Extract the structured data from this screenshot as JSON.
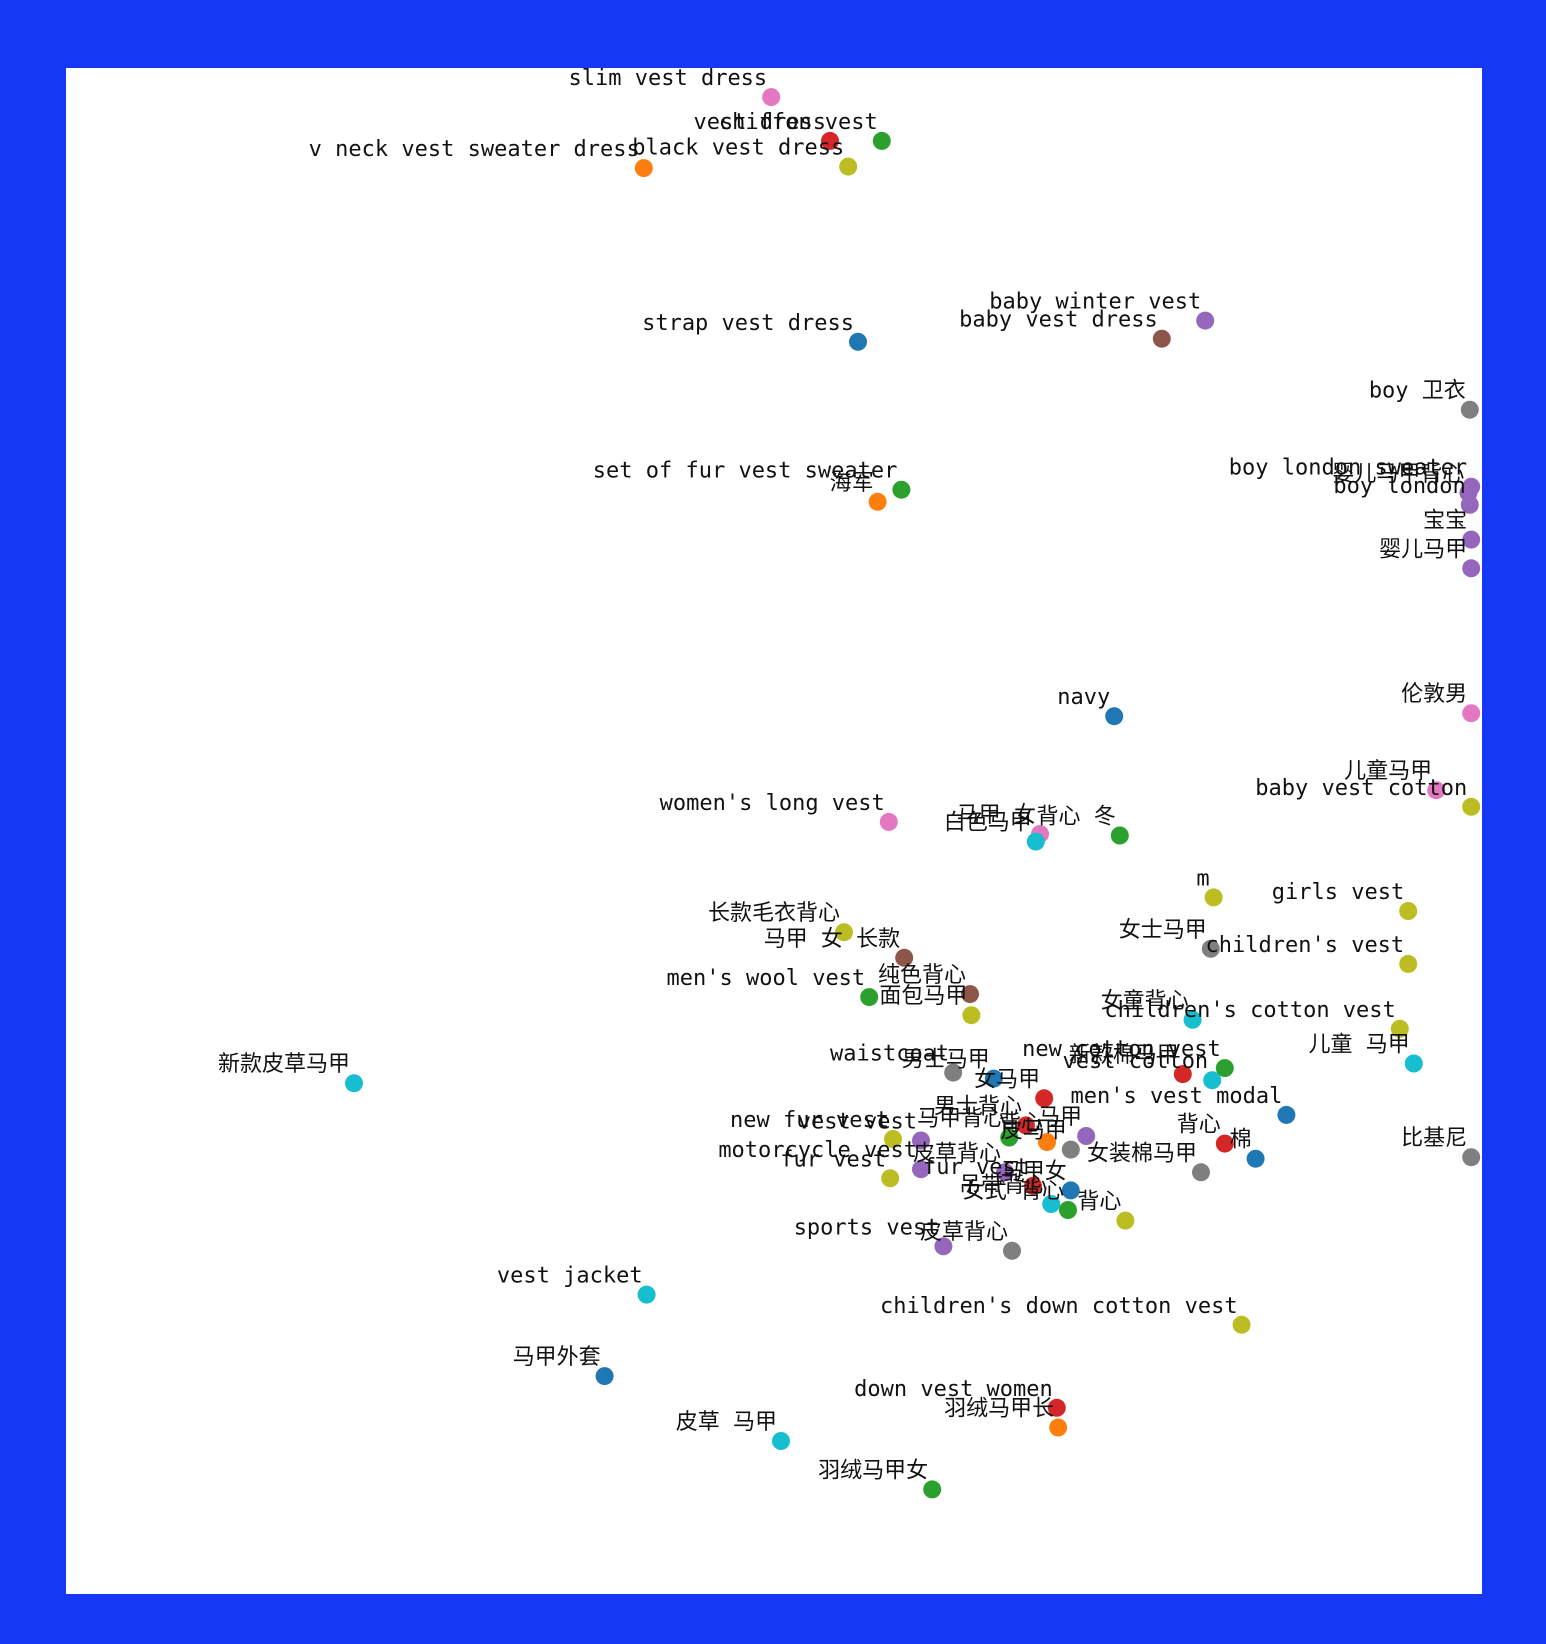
{
  "chart_data": {
    "type": "scatter",
    "title": "",
    "xlabel": "",
    "ylabel": "",
    "axes_visible": false,
    "grid": false,
    "frame_color": "#1438f5",
    "xlim": [
      0,
      100
    ],
    "ylim": [
      0,
      100
    ],
    "points": [
      {
        "label": "slim vest dress",
        "x": 49.8,
        "y": 98.6,
        "color": "#e377c2"
      },
      {
        "label": "vest dress",
        "x": 54.0,
        "y": 95.7,
        "color": "#d62728"
      },
      {
        "label": "chiffon vest",
        "x": 57.7,
        "y": 95.7,
        "color": "#2ca02c"
      },
      {
        "label": "v neck vest sweater dress",
        "x": 40.7,
        "y": 93.9,
        "color": "#ff7f0e"
      },
      {
        "label": "black vest dress",
        "x": 55.3,
        "y": 94.0,
        "color": "#bcbd22"
      },
      {
        "label": "strap vest dress",
        "x": 56.0,
        "y": 82.4,
        "color": "#1f77b4"
      },
      {
        "label": "baby winter vest",
        "x": 80.8,
        "y": 83.8,
        "color": "#9467bd"
      },
      {
        "label": "baby vest dress",
        "x": 77.7,
        "y": 82.6,
        "color": "#8c564b"
      },
      {
        "label": "boy 卫衣",
        "x": 99.7,
        "y": 77.9,
        "color": "#7f7f7f"
      },
      {
        "label": "set of fur vest sweater",
        "x": 59.1,
        "y": 72.6,
        "color": "#2ca02c"
      },
      {
        "label": "海军",
        "x": 57.4,
        "y": 71.8,
        "color": "#ff7f0e"
      },
      {
        "label": "boy london sweater",
        "x": 99.8,
        "y": 72.8,
        "color": "#9467bd"
      },
      {
        "label": "婴儿马甲背心",
        "x": 99.6,
        "y": 72.4,
        "color": "#9467bd"
      },
      {
        "label": "boy london",
        "x": 99.7,
        "y": 71.6,
        "color": "#9467bd"
      },
      {
        "label": "宝宝",
        "x": 99.8,
        "y": 69.3,
        "color": "#9467bd"
      },
      {
        "label": "婴儿马甲",
        "x": 99.8,
        "y": 67.4,
        "color": "#9467bd"
      },
      {
        "label": "navy",
        "x": 74.3,
        "y": 57.6,
        "color": "#1f77b4"
      },
      {
        "label": "伦敦男",
        "x": 99.8,
        "y": 57.8,
        "color": "#e377c2"
      },
      {
        "label": "儿童马甲",
        "x": 97.3,
        "y": 52.7,
        "color": "#e377c2"
      },
      {
        "label": "baby vest cotton",
        "x": 99.8,
        "y": 51.6,
        "color": "#bcbd22"
      },
      {
        "label": "women's long vest",
        "x": 58.2,
        "y": 50.6,
        "color": "#e377c2"
      },
      {
        "label": "马甲 女",
        "x": 69.0,
        "y": 49.8,
        "color": "#e377c2"
      },
      {
        "label": "背心 冬",
        "x": 74.7,
        "y": 49.7,
        "color": "#2ca02c"
      },
      {
        "label": "白色马甲",
        "x": 68.7,
        "y": 49.3,
        "color": "#17becf"
      },
      {
        "label": "m",
        "x": 81.4,
        "y": 45.6,
        "color": "#bcbd22"
      },
      {
        "label": "girls vest",
        "x": 95.3,
        "y": 44.7,
        "color": "#bcbd22"
      },
      {
        "label": "长款毛衣背心",
        "x": 55.0,
        "y": 43.3,
        "color": "#bcbd22"
      },
      {
        "label": "女士马甲",
        "x": 81.2,
        "y": 42.2,
        "color": "#7f7f7f"
      },
      {
        "label": "children's vest",
        "x": 95.3,
        "y": 41.2,
        "color": "#bcbd22"
      },
      {
        "label": "马甲 女 长款",
        "x": 59.3,
        "y": 41.6,
        "color": "#8c564b"
      },
      {
        "label": "纯色背心",
        "x": 64.0,
        "y": 39.2,
        "color": "#8c564b"
      },
      {
        "label": "men's wool vest",
        "x": 56.8,
        "y": 39.0,
        "color": "#2ca02c"
      },
      {
        "label": "面包马甲",
        "x": 64.1,
        "y": 37.8,
        "color": "#bcbd22"
      },
      {
        "label": "女童背心",
        "x": 79.9,
        "y": 37.5,
        "color": "#17becf"
      },
      {
        "label": "children's cotton vest",
        "x": 94.7,
        "y": 36.9,
        "color": "#bcbd22"
      },
      {
        "label": "新款皮草马甲",
        "x": 20.0,
        "y": 33.3,
        "color": "#17becf"
      },
      {
        "label": "waistcoat",
        "x": 62.8,
        "y": 34.0,
        "color": "#7f7f7f"
      },
      {
        "label": "男士马甲",
        "x": 65.7,
        "y": 33.6,
        "color": "#1f77b4"
      },
      {
        "label": "new cotton vest",
        "x": 82.2,
        "y": 34.3,
        "color": "#2ca02c"
      },
      {
        "label": "新款棉马甲",
        "x": 79.2,
        "y": 33.9,
        "color": "#d62728"
      },
      {
        "label": "vest cotton",
        "x": 81.3,
        "y": 33.5,
        "color": "#17becf"
      },
      {
        "label": "儿童 马甲",
        "x": 95.7,
        "y": 34.6,
        "color": "#17becf"
      },
      {
        "label": "女马甲",
        "x": 69.3,
        "y": 32.3,
        "color": "#d62728"
      },
      {
        "label": "men's vest modal",
        "x": 86.6,
        "y": 31.2,
        "color": "#1f77b4"
      },
      {
        "label": "男士背心",
        "x": 68.0,
        "y": 30.5,
        "color": "#d62728"
      },
      {
        "label": "new fur vest",
        "x": 58.5,
        "y": 29.6,
        "color": "#bcbd22"
      },
      {
        "label": "vest vest",
        "x": 60.5,
        "y": 29.5,
        "color": "#9467bd"
      },
      {
        "label": "马甲背心",
        "x": 66.8,
        "y": 29.7,
        "color": "#2ca02c"
      },
      {
        "label": "背心",
        "x": 69.5,
        "y": 29.4,
        "color": "#ff7f0e"
      },
      {
        "label": "马甲",
        "x": 72.3,
        "y": 29.8,
        "color": "#9467bd"
      },
      {
        "label": "皮马甲",
        "x": 71.2,
        "y": 28.9,
        "color": "#7f7f7f"
      },
      {
        "label": "背心",
        "x": 82.2,
        "y": 29.3,
        "color": "#d62728"
      },
      {
        "label": "棉",
        "x": 84.4,
        "y": 28.3,
        "color": "#1f77b4"
      },
      {
        "label": "比基尼",
        "x": 99.8,
        "y": 28.4,
        "color": "#7f7f7f"
      },
      {
        "label": "女装棉马甲",
        "x": 80.5,
        "y": 27.4,
        "color": "#7f7f7f"
      },
      {
        "label": "fur vest",
        "x": 58.3,
        "y": 27.0,
        "color": "#bcbd22"
      },
      {
        "label": "motorcycle vest",
        "x": 60.5,
        "y": 27.6,
        "color": "#9467bd"
      },
      {
        "label": "皮草背心",
        "x": 66.5,
        "y": 27.4,
        "color": "#9467bd"
      },
      {
        "label": "fur vest",
        "x": 68.5,
        "y": 26.5,
        "color": "#d62728"
      },
      {
        "label": "马甲女",
        "x": 71.2,
        "y": 26.2,
        "color": "#1f77b4"
      },
      {
        "label": "吊带背心",
        "x": 69.8,
        "y": 25.3,
        "color": "#17becf"
      },
      {
        "label": "女式 背心",
        "x": 71.0,
        "y": 24.9,
        "color": "#2ca02c"
      },
      {
        "label": "背心",
        "x": 75.1,
        "y": 24.2,
        "color": "#bcbd22"
      },
      {
        "label": "sports vest",
        "x": 62.1,
        "y": 22.5,
        "color": "#9467bd"
      },
      {
        "label": "皮草背心",
        "x": 67.0,
        "y": 22.2,
        "color": "#7f7f7f"
      },
      {
        "label": "vest jacket",
        "x": 40.9,
        "y": 19.3,
        "color": "#17becf"
      },
      {
        "label": "children's down cotton vest",
        "x": 83.4,
        "y": 17.3,
        "color": "#bcbd22"
      },
      {
        "label": "马甲外套",
        "x": 37.9,
        "y": 13.9,
        "color": "#1f77b4"
      },
      {
        "label": "down vest women",
        "x": 70.2,
        "y": 11.8,
        "color": "#d62728"
      },
      {
        "label": "羽绒马甲长",
        "x": 70.3,
        "y": 10.5,
        "color": "#ff7f0e"
      },
      {
        "label": "皮草 马甲",
        "x": 50.5,
        "y": 9.6,
        "color": "#17becf"
      },
      {
        "label": "羽绒马甲女",
        "x": 61.3,
        "y": 6.4,
        "color": "#2ca02c"
      }
    ]
  }
}
